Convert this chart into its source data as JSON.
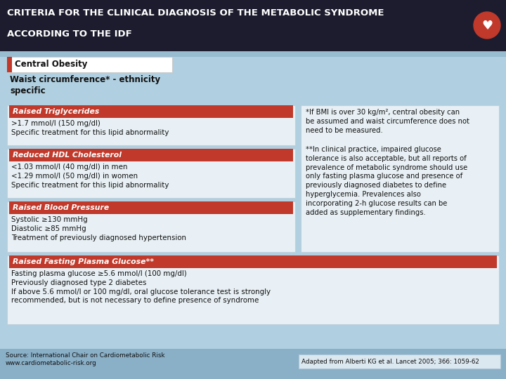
{
  "title_line1": "CRITERIA FOR THE CLINICAL DIAGNOSIS OF THE METABOLIC SYNDROME",
  "title_line2": "ACCORDING TO THE IDF",
  "title_bg": "#1c1c2e",
  "title_text_color": "#ffffff",
  "bg_color": "#b0cfe0",
  "central_obesity_label": "Central Obesity",
  "waist_text": "Waist circumference* - ethnicity\nspecific",
  "sections": [
    {
      "label": "Raised Triglycerides",
      "label_bg": "#c0392b",
      "label_text_color": "#ffffff",
      "body": ">1.7 mmol/l (150 mg/dl)\nSpecific treatment for this lipid abnormality"
    },
    {
      "label": "Reduced HDL Cholesterol",
      "label_bg": "#c0392b",
      "label_text_color": "#ffffff",
      "body": "<1.03 mmol/l (40 mg/dl) in men\n<1.29 mmol/l (50 mg/dl) in women\nSpecific treatment for this lipid abnormality"
    },
    {
      "label": "Raised Blood Pressure",
      "label_bg": "#c0392b",
      "label_text_color": "#ffffff",
      "body": "Systolic ≥130 mmHg\nDiastolic ≥85 mmHg\nTreatment of previously diagnosed hypertension"
    }
  ],
  "bottom_section": {
    "label": "Raised Fasting Plasma Glucose**",
    "label_bg": "#c0392b",
    "label_text_color": "#ffffff",
    "body": "Fasting plasma glucose ≥5.6 mmol/l (100 mg/dl)\nPreviously diagnosed type 2 diabetes\nIf above 5.6 mmol/l or 100 mg/dl, oral glucose tolerance test is strongly\nrecommended, but is not necessary to define presence of syndrome"
  },
  "right_note1": "*If BMI is over 30 kg/m², central obesity can\nbe assumed and waist circumference does not\nneed to be measured.",
  "right_note2": "**In clinical practice, impaired glucose\ntolerance is also acceptable, but all reports of\nprevalence of metabolic syndrome should use\nonly fasting plasma glucose and presence of\npreviously diagnosed diabetes to define\nhyperglycemia. Prevalences also\nincorporating 2-h glucose results can be\nadded as supplementary findings.",
  "source_text": "Source: International Chair on Cardiometabolic Risk\nwww.cardiometabolic-risk.org",
  "adapted_text": "Adapted from Alberti KG et al. Lancet 2005; 366: 1059-62",
  "white_box_bg": "#e8f0f5",
  "box_border": "#c0d0dc"
}
